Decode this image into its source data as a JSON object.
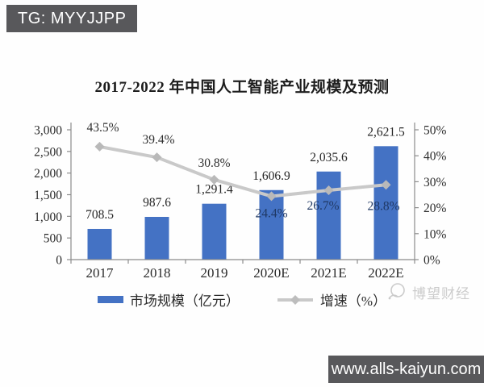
{
  "badges": {
    "tg": "TG: MYYJJPP",
    "site": "www.alls-kaiyun.com"
  },
  "watermark": "博望财经",
  "chart_data": {
    "type": "bar",
    "subtype": "bar-line-combo",
    "title": "2017-2022 年中国人工智能产业规模及预测",
    "xlabel": "",
    "ylabel": "",
    "categories": [
      "2017",
      "2018",
      "2019",
      "2020E",
      "2021E",
      "2022E"
    ],
    "series": [
      {
        "name": "市场规模（亿元）",
        "type": "bar",
        "axis": "left",
        "color": "#4472C4",
        "values": [
          708.5,
          987.6,
          1291.4,
          1606.9,
          2035.6,
          2621.5
        ],
        "labels": [
          "708.5",
          "987.6",
          "1,291.4",
          "1,606.9",
          "2,035.6",
          "2,621.5"
        ]
      },
      {
        "name": "增速（%）",
        "type": "line",
        "axis": "right",
        "color": "#c9c9c9",
        "marker": "diamond",
        "marker_color": "#b9b9b9",
        "values": [
          43.5,
          39.4,
          30.8,
          24.4,
          26.7,
          28.8
        ],
        "labels": [
          "43.5%",
          "39.4%",
          "30.8%",
          "24.4%",
          "26.7%",
          "28.8%"
        ]
      }
    ],
    "left_axis": {
      "min": 0,
      "max": 3000,
      "tick_labels": [
        "0",
        "500",
        "1,000",
        "1,500",
        "2,000",
        "2,500",
        "3,000"
      ]
    },
    "right_axis": {
      "min": 0,
      "max": 50,
      "tick_labels": [
        "0%",
        "10%",
        "20%",
        "30%",
        "40%",
        "50%"
      ]
    },
    "grid": "off",
    "legend_position": "bottom"
  }
}
